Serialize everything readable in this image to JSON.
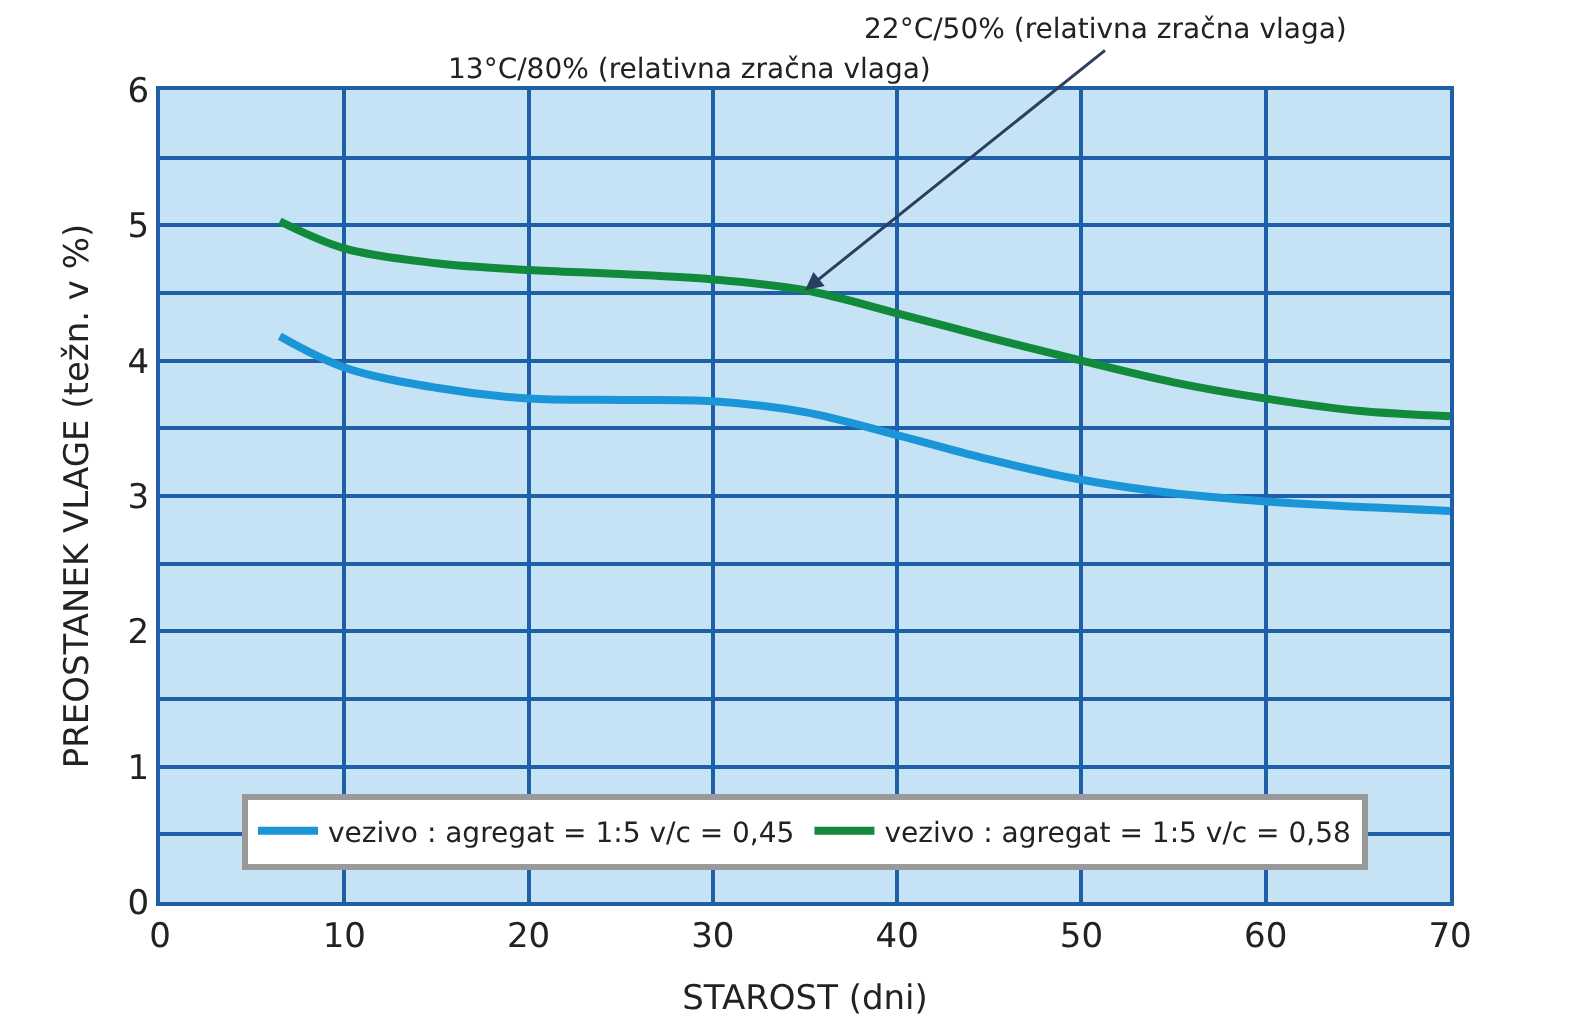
{
  "chart_data": {
    "type": "line",
    "xlabel": "STAROST (dni)",
    "ylabel": "PREOSTANEK VLAGE (težn. v %)",
    "annotations": [
      "13°C/80% (relativna zračna vlaga)",
      {
        "text": "22°C/50% (relativna zračna vlaga)",
        "x": 35,
        "y": 4.52
      }
    ],
    "series": [
      {
        "name": "vezivo : agregat = 1:5 v/c = 0,45",
        "color": "#1a96d8",
        "x": [
          6.5,
          10,
          15,
          20,
          25,
          30,
          35,
          40,
          45,
          50,
          55,
          60,
          65,
          70
        ],
        "values": [
          4.18,
          3.95,
          3.8,
          3.72,
          3.71,
          3.7,
          3.62,
          3.45,
          3.27,
          3.12,
          3.02,
          2.96,
          2.92,
          2.89
        ]
      },
      {
        "name": "vezivo : agregat = 1:5 v/c = 0,58",
        "color": "#128a3c",
        "x": [
          6.5,
          10,
          15,
          20,
          25,
          30,
          35,
          40,
          45,
          50,
          55,
          60,
          65,
          70
        ],
        "values": [
          5.03,
          4.83,
          4.72,
          4.67,
          4.64,
          4.6,
          4.52,
          4.35,
          4.17,
          4.0,
          3.84,
          3.72,
          3.63,
          3.59
        ]
      }
    ],
    "xlim": [
      0,
      70
    ],
    "xticks": [
      0,
      10,
      20,
      30,
      40,
      50,
      60,
      70
    ],
    "ylim": [
      0,
      6
    ],
    "yticks": [
      0,
      {
        "value": 0.5,
        "label": null
      },
      1,
      {
        "value": 1.5,
        "label": null
      },
      2,
      {
        "value": 2.5,
        "label": null
      },
      3,
      {
        "value": 3.5,
        "label": null
      },
      4,
      {
        "value": 4.5,
        "label": null
      },
      5,
      {
        "value": 5.5,
        "label": null
      },
      6
    ],
    "grid": true,
    "legend": "bottom",
    "marker": "none",
    "line_style": "solid"
  }
}
